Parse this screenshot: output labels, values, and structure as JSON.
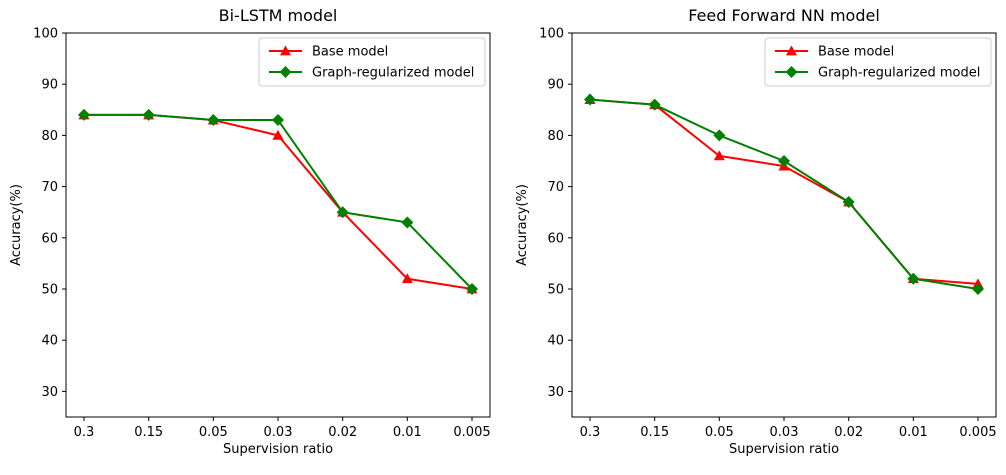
{
  "figure": {
    "background_color": "#ffffff",
    "axis_color": "#000000",
    "legend_border_color": "#cccccc"
  },
  "chart_data": [
    {
      "type": "line",
      "title": "Bi-LSTM model",
      "xlabel": "Supervision ratio",
      "ylabel": "Accuracy(%)",
      "categories": [
        "0.3",
        "0.15",
        "0.05",
        "0.03",
        "0.02",
        "0.01",
        "0.005"
      ],
      "yticks": [
        30,
        40,
        50,
        60,
        70,
        80,
        90,
        100
      ],
      "ylim": [
        25,
        100
      ],
      "grid": false,
      "legend_position": "upper right",
      "series": [
        {
          "name": "Base model",
          "color": "#ff0000",
          "marker": "triangle",
          "values": [
            84,
            84,
            83,
            80,
            65,
            52,
            50
          ]
        },
        {
          "name": "Graph-regularized model",
          "color": "#008000",
          "marker": "diamond",
          "values": [
            84,
            84,
            83,
            83,
            65,
            63,
            50
          ]
        }
      ]
    },
    {
      "type": "line",
      "title": "Feed Forward NN model",
      "xlabel": "Supervision ratio",
      "ylabel": "Accuracy(%)",
      "categories": [
        "0.3",
        "0.15",
        "0.05",
        "0.03",
        "0.02",
        "0.01",
        "0.005"
      ],
      "yticks": [
        30,
        40,
        50,
        60,
        70,
        80,
        90,
        100
      ],
      "ylim": [
        25,
        100
      ],
      "grid": false,
      "legend_position": "upper right",
      "series": [
        {
          "name": "Base model",
          "color": "#ff0000",
          "marker": "triangle",
          "values": [
            87,
            86,
            76,
            74,
            67,
            52,
            51
          ]
        },
        {
          "name": "Graph-regularized model",
          "color": "#008000",
          "marker": "diamond",
          "values": [
            87,
            86,
            80,
            75,
            67,
            52,
            50
          ]
        }
      ]
    }
  ]
}
